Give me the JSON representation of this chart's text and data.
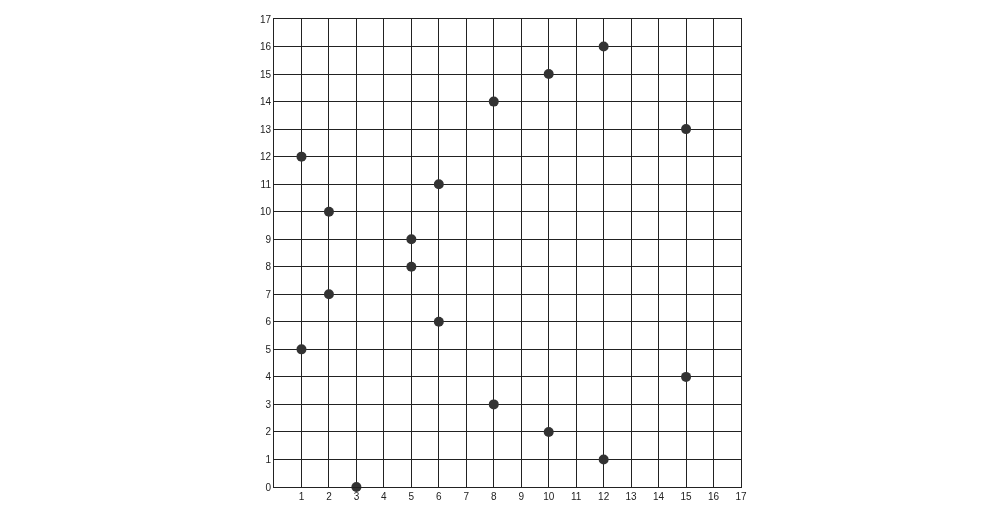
{
  "chart_data": {
    "type": "scatter",
    "x": [
      1,
      1,
      2,
      2,
      3,
      5,
      5,
      6,
      6,
      8,
      8,
      10,
      10,
      12,
      12,
      15,
      15
    ],
    "values": [
      12,
      5,
      10,
      7,
      0,
      9,
      8,
      11,
      6,
      14,
      3,
      15,
      2,
      16,
      1,
      13,
      4
    ],
    "color": "#333333",
    "marker": "circle",
    "grid": true,
    "xlim": [
      0,
      17
    ],
    "xticks": [
      1,
      2,
      3,
      4,
      5,
      6,
      7,
      8,
      9,
      10,
      11,
      12,
      13,
      14,
      15,
      16,
      17
    ],
    "ylim": [
      0,
      17
    ],
    "yticks": [
      0,
      1,
      2,
      3,
      4,
      5,
      6,
      7,
      8,
      9,
      10,
      11,
      12,
      13,
      14,
      15,
      16,
      17
    ]
  }
}
